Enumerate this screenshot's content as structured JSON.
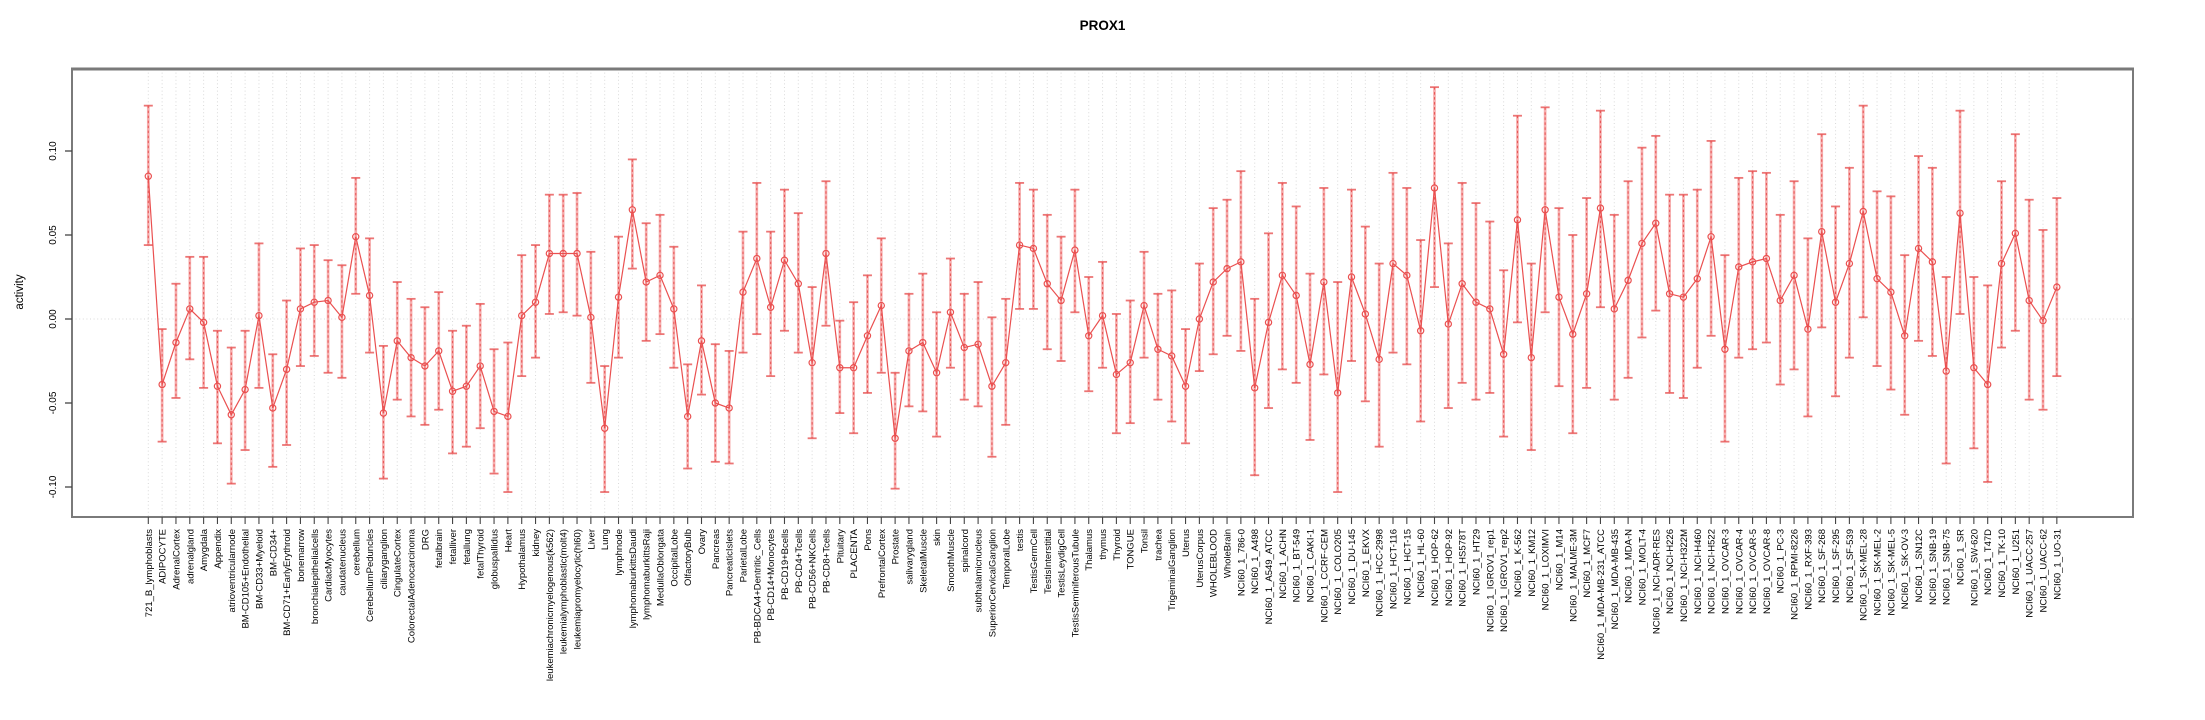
{
  "chart_data": {
    "type": "errorbar-line",
    "title": "PROX1",
    "ylabel": "activity",
    "xlabel": "",
    "ylim": [
      -0.118,
      0.149
    ],
    "yticks": [
      -0.1,
      -0.05,
      0.0,
      0.05,
      0.1
    ],
    "grid": "vertical-dotted-per-category-plus-zero-line",
    "legend": "none",
    "colors": {
      "line": "#ea5050",
      "point": "#ea5050",
      "stem": "#f5a0a0",
      "stem_dash": "#e85555",
      "grid": "#d9d9d9",
      "box": "#7a7a7a",
      "tick": "#444444",
      "text": "#000000"
    },
    "layout": {
      "x0": 148.3,
      "dx": 13.83,
      "box": {
        "l": 72,
        "t": 69,
        "r": 2133,
        "b": 517
      },
      "y_zero": 319,
      "y_scale": 1680
    },
    "categories": [
      "721_B_lymphoblasts",
      "ADIPOCYTE",
      "AdrenalCortex",
      "adrenalgland",
      "Amygdala",
      "Appendix",
      "atrioventricularnode",
      "BM-CD105+Endothelial",
      "BM-CD33+Myeloid",
      "BM-CD34+",
      "BM-CD71+EarlyErythroid",
      "bonemarrow",
      "bronchialepithelialcells",
      "CardiacMyocytes",
      "caudatenucleus",
      "cerebellum",
      "CerebellumPeduncles",
      "ciliaryganglion",
      "CingulateCortex",
      "ColorectalAdenocarcinoma",
      "DRG",
      "fetalbrain",
      "fetalliver",
      "fetallung",
      "fetalThyroid",
      "globuspallidus",
      "Heart",
      "Hypothalamus",
      "kidney",
      "leukemiachronicmyelogenous(k562)",
      "leukemialymphoblastic(molt4)",
      "leukemiapromyelocytic(hl60)",
      "Liver",
      "Lung",
      "lymphnode",
      "lymphomaburkittsDaudi",
      "lymphomaburkittsRaji",
      "MedullaOblongata",
      "OccipitalLobe",
      "OlfactoryBulb",
      "Ovary",
      "Pancreas",
      "PancreaticIslets",
      "ParietalLobe",
      "PB-BDCA4+Dentritic_Cells",
      "PB-CD14+Monocytes",
      "PB-CD19+Bcells",
      "PB-CD4+Tcells",
      "PB-CD56+NKCells",
      "PB-CD8+Tcells",
      "Pituitary",
      "PLACENTA",
      "Pons",
      "PrefrontalCortex",
      "Prostate",
      "salivarygland",
      "SkeletalMuscle",
      "skin",
      "SmoothMuscle",
      "spinalcord",
      "subthalamicnucleus",
      "SuperiorCervicalGanglion",
      "TemporalLobe",
      "testis",
      "TestisGermCell",
      "TestisInterstitial",
      "TestisLeydigCell",
      "TestisSeminiferousTubule",
      "Thalamus",
      "thymus",
      "Thyroid",
      "TONGUE",
      "Tonsil",
      "trachea",
      "TrigeminalGanglion",
      "Uterus",
      "UterusCorpus",
      "WHOLEBLOOD",
      "WholeBrain",
      "NCI60_1_786-0",
      "NCI60_1_A498",
      "NCI60_1_A549_ATCC",
      "NCI60_1_ACHN",
      "NCI60_1_BT-549",
      "NCI60_1_CAKI-1",
      "NCI60_1_CCRF-CEM",
      "NCI60_1_COLO205",
      "NCI60_1_DU-145",
      "NCI60_1_EKVX",
      "NCI60_1_HCC-2998",
      "NCI60_1_HCT-116",
      "NCI60_1_HCT-15",
      "NCI60_1_HL-60",
      "NCI60_1_HOP-62",
      "NCI60_1_HOP-92",
      "NCI60_1_HS578T",
      "NCI60_1_HT29",
      "NCI60_1_IGROV1_rep1",
      "NCI60_1_IGROV1_rep2",
      "NCI60_1_K-562",
      "NCI60_1_KM12",
      "NCI60_1_LOXIMVI",
      "NCI60_1_M14",
      "NCI60_1_MALME-3M",
      "NCI60_1_MCF7",
      "NCI60_1_MDA-MB-231_ATCC",
      "NCI60_1_MDA-MB-435",
      "NCI60_1_MDA-N",
      "NCI60_1_MOLT-4",
      "NCI60_1_NCI-ADR-RES",
      "NCI60_1_NCI-H226",
      "NCI60_1_NCI-H322M",
      "NCI60_1_NCI-H460",
      "NCI60_1_NCI-H522",
      "NCI60_1_OVCAR-3",
      "NCI60_1_OVCAR-4",
      "NCI60_1_OVCAR-5",
      "NCI60_1_OVCAR-8",
      "NCI60_1_PC-3",
      "NCI60_1_RPMI-8226",
      "NCI60_1_RXF-393",
      "NCI60_1_SF-268",
      "NCI60_1_SF-295",
      "NCI60_1_SF-539",
      "NCI60_1_SK-MEL-28",
      "NCI60_1_SK-MEL-2",
      "NCI60_1_SK-MEL-5",
      "NCI60_1_SK-OV-3",
      "NCI60_1_SN12C",
      "NCI60_1_SNB-19",
      "NCI60_1_SNB-75",
      "NCI60_1_SR",
      "NCI60_1_SW-620",
      "NCI60_1_T47D",
      "NCI60_1_TK-10",
      "NCI60_1_U251",
      "NCI60_1_UACC-257",
      "NCI60_1_UACC-62",
      "NCI60_1_UO-31"
    ],
    "means": [
      0.085,
      -0.039,
      -0.014,
      0.006,
      -0.002,
      -0.04,
      -0.057,
      -0.042,
      0.002,
      -0.053,
      -0.03,
      0.006,
      0.01,
      0.011,
      0.001,
      0.049,
      0.014,
      -0.056,
      -0.013,
      -0.023,
      -0.028,
      -0.019,
      -0.043,
      -0.04,
      -0.028,
      -0.055,
      -0.058,
      0.002,
      0.01,
      0.039,
      0.039,
      0.039,
      0.001,
      -0.065,
      0.013,
      0.065,
      0.022,
      0.026,
      0.006,
      -0.058,
      -0.013,
      -0.05,
      -0.053,
      0.016,
      0.036,
      0.007,
      0.035,
      0.021,
      -0.026,
      0.039,
      -0.029,
      -0.029,
      -0.01,
      0.008,
      -0.071,
      -0.019,
      -0.014,
      -0.032,
      0.004,
      -0.017,
      -0.015,
      -0.04,
      -0.026,
      0.044,
      0.042,
      0.021,
      0.011,
      0.041,
      -0.01,
      0.002,
      -0.033,
      -0.026,
      0.008,
      -0.018,
      -0.022,
      -0.04,
      0.0,
      0.022,
      0.03,
      0.034,
      -0.041,
      -0.002,
      0.026,
      0.014,
      -0.027,
      0.022,
      -0.044,
      0.025,
      0.003,
      -0.024,
      0.033,
      0.026,
      -0.007,
      0.078,
      -0.003,
      0.021,
      0.01,
      0.006,
      -0.021,
      0.059,
      -0.023,
      0.065,
      0.013,
      -0.009,
      0.015,
      0.066,
      0.006,
      0.023,
      0.045,
      0.057,
      0.015,
      0.013,
      0.024,
      0.049,
      -0.018,
      0.031,
      0.034,
      0.036,
      0.011,
      0.026,
      -0.006,
      0.052,
      0.01,
      0.033,
      0.064,
      0.024,
      0.016,
      -0.01,
      0.042,
      0.034,
      -0.031,
      0.063,
      -0.029,
      -0.039,
      0.033,
      0.051,
      0.011,
      -0.001,
      0.019
    ],
    "lower": [
      0.044,
      -0.073,
      -0.047,
      -0.024,
      -0.041,
      -0.074,
      -0.098,
      -0.078,
      -0.041,
      -0.088,
      -0.075,
      -0.028,
      -0.022,
      -0.032,
      -0.035,
      0.015,
      -0.02,
      -0.095,
      -0.048,
      -0.058,
      -0.063,
      -0.054,
      -0.08,
      -0.076,
      -0.065,
      -0.092,
      -0.103,
      -0.034,
      -0.023,
      0.003,
      0.004,
      0.002,
      -0.038,
      -0.103,
      -0.023,
      0.03,
      -0.013,
      -0.009,
      -0.029,
      -0.089,
      -0.045,
      -0.085,
      -0.086,
      -0.02,
      -0.009,
      -0.034,
      -0.007,
      -0.02,
      -0.071,
      -0.004,
      -0.056,
      -0.068,
      -0.044,
      -0.032,
      -0.101,
      -0.052,
      -0.055,
      -0.07,
      -0.029,
      -0.048,
      -0.052,
      -0.082,
      -0.063,
      0.006,
      0.006,
      -0.018,
      -0.025,
      0.004,
      -0.043,
      -0.029,
      -0.068,
      -0.062,
      -0.023,
      -0.048,
      -0.061,
      -0.074,
      -0.031,
      -0.021,
      -0.01,
      -0.019,
      -0.093,
      -0.053,
      -0.03,
      -0.038,
      -0.072,
      -0.033,
      -0.103,
      -0.025,
      -0.049,
      -0.076,
      -0.02,
      -0.027,
      -0.061,
      0.019,
      -0.053,
      -0.038,
      -0.048,
      -0.044,
      -0.07,
      -0.002,
      -0.078,
      0.004,
      -0.04,
      -0.068,
      -0.041,
      0.007,
      -0.048,
      -0.035,
      -0.011,
      0.005,
      -0.044,
      -0.047,
      -0.029,
      -0.01,
      -0.073,
      -0.023,
      -0.018,
      -0.014,
      -0.039,
      -0.03,
      -0.058,
      -0.005,
      -0.046,
      -0.023,
      0.001,
      -0.028,
      -0.042,
      -0.057,
      -0.013,
      -0.022,
      -0.086,
      0.003,
      -0.077,
      -0.097,
      -0.017,
      -0.007,
      -0.048,
      -0.054,
      -0.034
    ],
    "upper": [
      0.127,
      -0.006,
      0.021,
      0.037,
      0.037,
      -0.007,
      -0.017,
      -0.007,
      0.045,
      -0.021,
      0.011,
      0.042,
      0.044,
      0.035,
      0.032,
      0.084,
      0.048,
      -0.016,
      0.022,
      0.012,
      0.007,
      0.016,
      -0.007,
      -0.004,
      0.009,
      -0.018,
      -0.014,
      0.038,
      0.044,
      0.074,
      0.074,
      0.075,
      0.04,
      -0.028,
      0.049,
      0.095,
      0.057,
      0.062,
      0.043,
      -0.027,
      0.02,
      -0.015,
      -0.019,
      0.052,
      0.081,
      0.052,
      0.077,
      0.063,
      0.019,
      0.082,
      -0.001,
      0.01,
      0.026,
      0.048,
      -0.032,
      0.015,
      0.027,
      0.004,
      0.036,
      0.015,
      0.022,
      0.001,
      0.012,
      0.081,
      0.077,
      0.062,
      0.049,
      0.077,
      0.025,
      0.034,
      0.003,
      0.011,
      0.04,
      0.015,
      0.017,
      -0.006,
      0.033,
      0.066,
      0.071,
      0.088,
      0.012,
      0.051,
      0.081,
      0.067,
      0.027,
      0.078,
      0.022,
      0.077,
      0.055,
      0.033,
      0.087,
      0.078,
      0.047,
      0.138,
      0.045,
      0.081,
      0.069,
      0.058,
      0.029,
      0.121,
      0.033,
      0.126,
      0.066,
      0.05,
      0.072,
      0.124,
      0.062,
      0.082,
      0.102,
      0.109,
      0.074,
      0.074,
      0.077,
      0.106,
      0.038,
      0.084,
      0.088,
      0.087,
      0.062,
      0.082,
      0.048,
      0.11,
      0.067,
      0.09,
      0.127,
      0.076,
      0.073,
      0.038,
      0.097,
      0.09,
      0.025,
      0.124,
      0.025,
      0.02,
      0.082,
      0.11,
      0.071,
      0.053,
      0.072
    ]
  }
}
